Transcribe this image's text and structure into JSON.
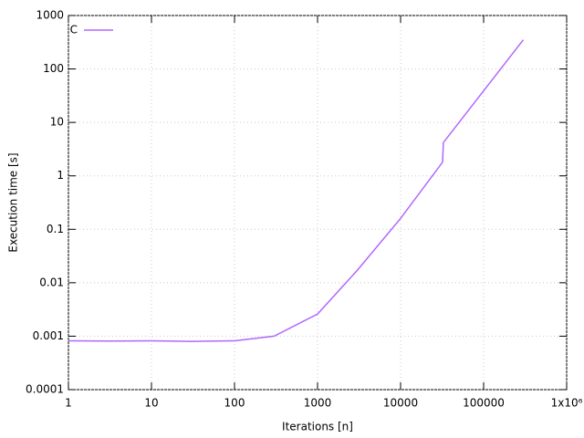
{
  "chart_data": {
    "type": "line",
    "x_label": "Iterations [n]",
    "y_label": "Execution time [s]",
    "x": [
      1,
      3,
      10,
      30,
      100,
      300,
      1000,
      3000,
      10000,
      32000,
      32768,
      300000
    ],
    "series": [
      {
        "name": "C",
        "color": "#b266ff",
        "values": [
          0.00082,
          0.00081,
          0.00082,
          0.0008,
          0.00082,
          0.001,
          0.0026,
          0.017,
          0.16,
          1.8,
          4.2,
          350
        ]
      }
    ],
    "xscale": "log",
    "yscale": "log",
    "xlim": [
      1,
      1000000
    ],
    "ylim": [
      0.0001,
      1000
    ],
    "xticks": [
      1,
      10,
      100,
      1000,
      10000,
      100000,
      {
        "value": 1000000,
        "label": "1x10⁶"
      }
    ],
    "yticks": [
      0.0001,
      0.001,
      0.01,
      0.1,
      1,
      10,
      100,
      1000
    ],
    "grid": true,
    "legend": "top-left"
  }
}
